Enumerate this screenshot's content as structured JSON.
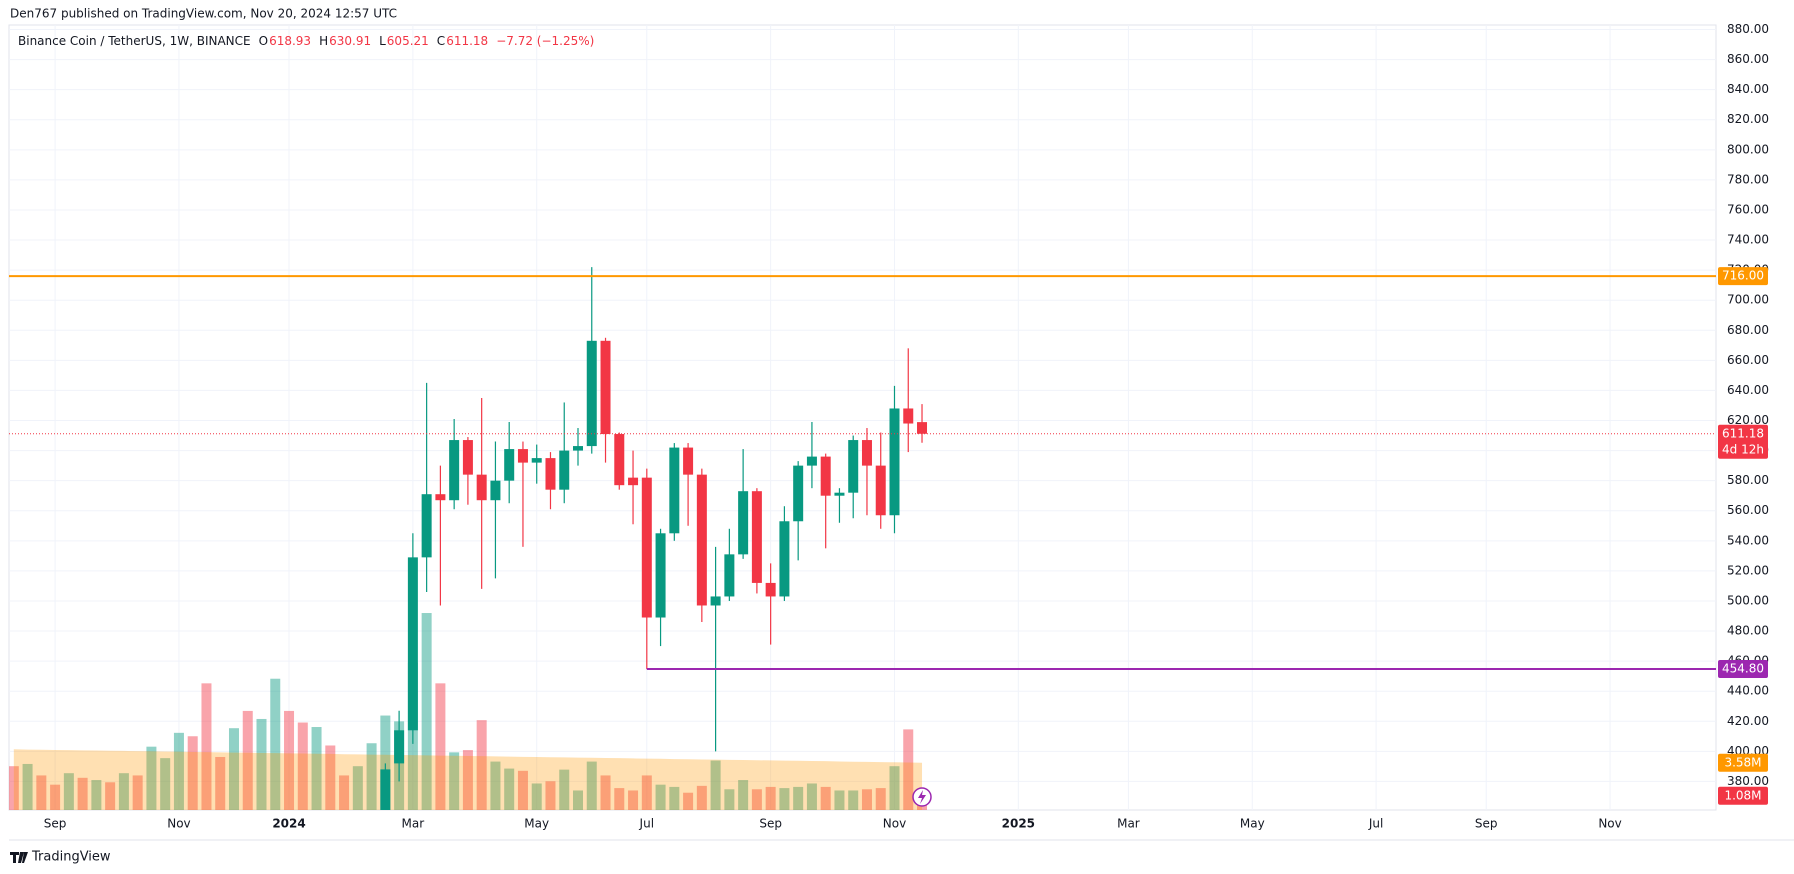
{
  "header": {
    "publisher": "Den767 published on TradingView.com, Nov 20, 2024 12:57 UTC"
  },
  "footer": {
    "brand": "TradingView"
  },
  "chart_data": {
    "type": "candlestick",
    "title": "Binance Coin / TetherUS, 1W, BINANCE",
    "ohlc_letters": [
      "O",
      "H",
      "L",
      "C"
    ],
    "change": "−7.72 (−1.25%)",
    "countdown": "4d 12h",
    "up_color": "#089981",
    "down_color": "#f23645",
    "grid": true,
    "x": [
      0,
      1,
      2,
      3,
      4,
      5,
      6,
      7,
      8,
      9,
      10,
      11,
      12,
      13,
      14,
      15,
      16,
      17,
      18,
      19,
      20,
      21,
      22,
      23,
      24,
      25,
      26,
      27,
      28,
      29,
      30,
      31,
      32,
      33,
      34,
      35,
      36,
      37,
      38,
      39,
      40,
      41,
      42,
      43,
      44,
      45,
      46,
      47,
      48,
      49,
      50,
      51,
      52,
      53,
      54,
      55,
      56,
      57,
      58,
      59,
      60,
      61,
      62,
      63,
      64,
      65,
      66
    ],
    "open": [
      null,
      null,
      null,
      null,
      null,
      null,
      null,
      null,
      null,
      null,
      null,
      null,
      null,
      null,
      null,
      null,
      null,
      null,
      null,
      null,
      null,
      null,
      null,
      null,
      null,
      null,
      null,
      355,
      392,
      414,
      529,
      571,
      567,
      607,
      584,
      567,
      580,
      601,
      592,
      595,
      574,
      600,
      603,
      673,
      611,
      582,
      582,
      489,
      545,
      602,
      584,
      497,
      503,
      531,
      573,
      512,
      503,
      553,
      590,
      596,
      570,
      572,
      607,
      590,
      557,
      628,
      618.93
    ],
    "high": [
      null,
      null,
      null,
      null,
      null,
      null,
      null,
      null,
      null,
      null,
      null,
      null,
      null,
      null,
      null,
      null,
      null,
      null,
      null,
      null,
      null,
      null,
      null,
      null,
      null,
      null,
      null,
      392,
      427,
      545,
      645,
      590,
      621,
      609,
      635,
      606,
      619,
      606,
      604,
      599,
      632,
      615,
      722,
      675,
      612,
      600,
      588,
      548,
      605,
      605,
      588,
      536,
      548,
      601,
      575,
      525,
      563,
      593,
      619,
      598,
      575,
      610,
      615,
      612,
      643,
      668,
      630.91
    ],
    "low": [
      null,
      null,
      null,
      null,
      null,
      null,
      null,
      null,
      null,
      null,
      null,
      null,
      null,
      null,
      null,
      null,
      null,
      null,
      null,
      null,
      null,
      null,
      null,
      null,
      null,
      null,
      null,
      350,
      380,
      405,
      506,
      497,
      561,
      564,
      508,
      515,
      565,
      536,
      578,
      561,
      565,
      590,
      598,
      592,
      574,
      551,
      454.8,
      470,
      540,
      550,
      486,
      400,
      500,
      528,
      505,
      471,
      500,
      527,
      575,
      535,
      552,
      555,
      557,
      548,
      545,
      599,
      605.21
    ],
    "close": [
      null,
      null,
      null,
      null,
      null,
      null,
      null,
      null,
      null,
      null,
      null,
      null,
      null,
      null,
      null,
      null,
      null,
      null,
      null,
      null,
      null,
      null,
      null,
      null,
      null,
      null,
      null,
      388,
      414,
      529,
      571,
      567,
      607,
      584,
      567,
      580,
      601,
      592,
      595,
      574,
      600,
      603,
      673,
      611,
      577,
      577,
      489,
      545,
      602,
      584,
      497,
      503,
      531,
      573,
      512,
      503,
      553,
      590,
      596,
      570,
      572,
      607,
      590,
      557,
      628,
      618,
      611.18
    ],
    "volume": {
      "values": [
        3320000,
        3490000,
        2620000,
        1920000,
        2790000,
        2440000,
        2270000,
        2100000,
        2790000,
        2620000,
        4800000,
        3930000,
        5850000,
        5590000,
        9600000,
        4020000,
        6200000,
        7510000,
        6900000,
        9950000,
        7510000,
        6630000,
        6290000,
        4890000,
        2620000,
        3320000,
        5060000,
        7160000,
        6720000,
        11170000,
        14930000,
        9600000,
        4370000,
        4540000,
        6810000,
        3670000,
        3140000,
        2970000,
        2010000,
        2180000,
        3060000,
        1480000,
        3670000,
        2620000,
        1660000,
        1480000,
        2620000,
        1920000,
        1750000,
        1310000,
        1830000,
        3750000,
        1570000,
        2270000,
        1570000,
        1750000,
        1660000,
        1750000,
        2010000,
        1750000,
        1480000,
        1480000,
        1570000,
        1660000,
        3320000,
        6110000,
        1080000
      ],
      "colors": [
        "#f23645",
        "#089981",
        "#f23645",
        "#f23645",
        "#089981",
        "#f23645",
        "#089981",
        "#f23645",
        "#089981",
        "#f23645",
        "#089981",
        "#089981",
        "#089981",
        "#f23645",
        "#f23645",
        "#f23645",
        "#089981",
        "#f23645",
        "#089981",
        "#089981",
        "#f23645",
        "#f23645",
        "#089981",
        "#f23645",
        "#f23645",
        "#089981",
        "#089981",
        "#089981",
        "#089981",
        "#089981",
        "#089981",
        "#f23645",
        "#089981",
        "#f23645",
        "#f23645",
        "#089981",
        "#089981",
        "#f23645",
        "#089981",
        "#f23645",
        "#089981",
        "#089981",
        "#089981",
        "#f23645",
        "#f23645",
        "#f23645",
        "#f23645",
        "#089981",
        "#089981",
        "#f23645",
        "#f23645",
        "#089981",
        "#089981",
        "#089981",
        "#f23645",
        "#f23645",
        "#089981",
        "#089981",
        "#089981",
        "#f23645",
        "#089981",
        "#089981",
        "#f23645",
        "#f23645",
        "#089981",
        "#f23645",
        "#f23645"
      ],
      "value_label": "1.08M"
    },
    "volume_ma": {
      "color": "#ff9800",
      "values": [
        4600000,
        4580000,
        4570000,
        4550000,
        4540000,
        4520000,
        4510000,
        4490000,
        4480000,
        4460000,
        4450000,
        4430000,
        4420000,
        4400000,
        4390000,
        4370000,
        4350000,
        4340000,
        4320000,
        4310000,
        4290000,
        4280000,
        4260000,
        4250000,
        4230000,
        4220000,
        4200000,
        4190000,
        4170000,
        4160000,
        4140000,
        4120000,
        4110000,
        4090000,
        4080000,
        4060000,
        4050000,
        4030000,
        4020000,
        4000000,
        3990000,
        3970000,
        3960000,
        3940000,
        3930000,
        3910000,
        3890000,
        3880000,
        3860000,
        3850000,
        3830000,
        3820000,
        3800000,
        3790000,
        3770000,
        3760000,
        3740000,
        3730000,
        3710000,
        3700000,
        3680000,
        3660000,
        3650000,
        3630000,
        3620000,
        3600000,
        3580000
      ],
      "value_label": "3.58M"
    },
    "volume_lim": [
      0,
      59500000
    ],
    "xlim": [
      -0.35,
      123.7
    ],
    "xticks": [
      {
        "value": 3,
        "label": "Sep"
      },
      {
        "value": 12,
        "label": "Nov"
      },
      {
        "value": 20,
        "label": "2024"
      },
      {
        "value": 29,
        "label": "Mar"
      },
      {
        "value": 38,
        "label": "May"
      },
      {
        "value": 46,
        "label": "Jul"
      },
      {
        "value": 55,
        "label": "Sep"
      },
      {
        "value": 64,
        "label": "Nov"
      },
      {
        "value": 73,
        "label": "2025"
      },
      {
        "value": 81,
        "label": "Mar"
      },
      {
        "value": 90,
        "label": "May"
      },
      {
        "value": 99,
        "label": "Jul"
      },
      {
        "value": 107,
        "label": "Sep"
      },
      {
        "value": 116,
        "label": "Nov"
      }
    ],
    "ylim": [
      361,
      883
    ],
    "yticks": [
      {
        "value": 380,
        "label": "380.00"
      },
      {
        "value": 400,
        "label": "400.00"
      },
      {
        "value": 420,
        "label": "420.00"
      },
      {
        "value": 440,
        "label": "440.00"
      },
      {
        "value": 460,
        "label": "460.00"
      },
      {
        "value": 480,
        "label": "480.00"
      },
      {
        "value": 500,
        "label": "500.00"
      },
      {
        "value": 520,
        "label": "520.00"
      },
      {
        "value": 540,
        "label": "540.00"
      },
      {
        "value": 560,
        "label": "560.00"
      },
      {
        "value": 580,
        "label": "580.00"
      },
      {
        "value": 600,
        "label": "600.00"
      },
      {
        "value": 620,
        "label": "620.00"
      },
      {
        "value": 640,
        "label": "640.00"
      },
      {
        "value": 660,
        "label": "660.00"
      },
      {
        "value": 680,
        "label": "680.00"
      },
      {
        "value": 700,
        "label": "700.00"
      },
      {
        "value": 720,
        "label": "720.00"
      },
      {
        "value": 740,
        "label": "740.00"
      },
      {
        "value": 760,
        "label": "760.00"
      },
      {
        "value": 780,
        "label": "780.00"
      },
      {
        "value": 800,
        "label": "800.00"
      },
      {
        "value": 820,
        "label": "820.00"
      },
      {
        "value": 840,
        "label": "840.00"
      },
      {
        "value": 860,
        "label": "860.00"
      },
      {
        "value": 880,
        "label": "880.00"
      }
    ],
    "hlines": [
      {
        "value": 716,
        "label": "716.00",
        "color": "#ff9800"
      },
      {
        "value": 454.8,
        "label": "454.80",
        "color": "#9c27b0",
        "start": 46
      }
    ]
  }
}
